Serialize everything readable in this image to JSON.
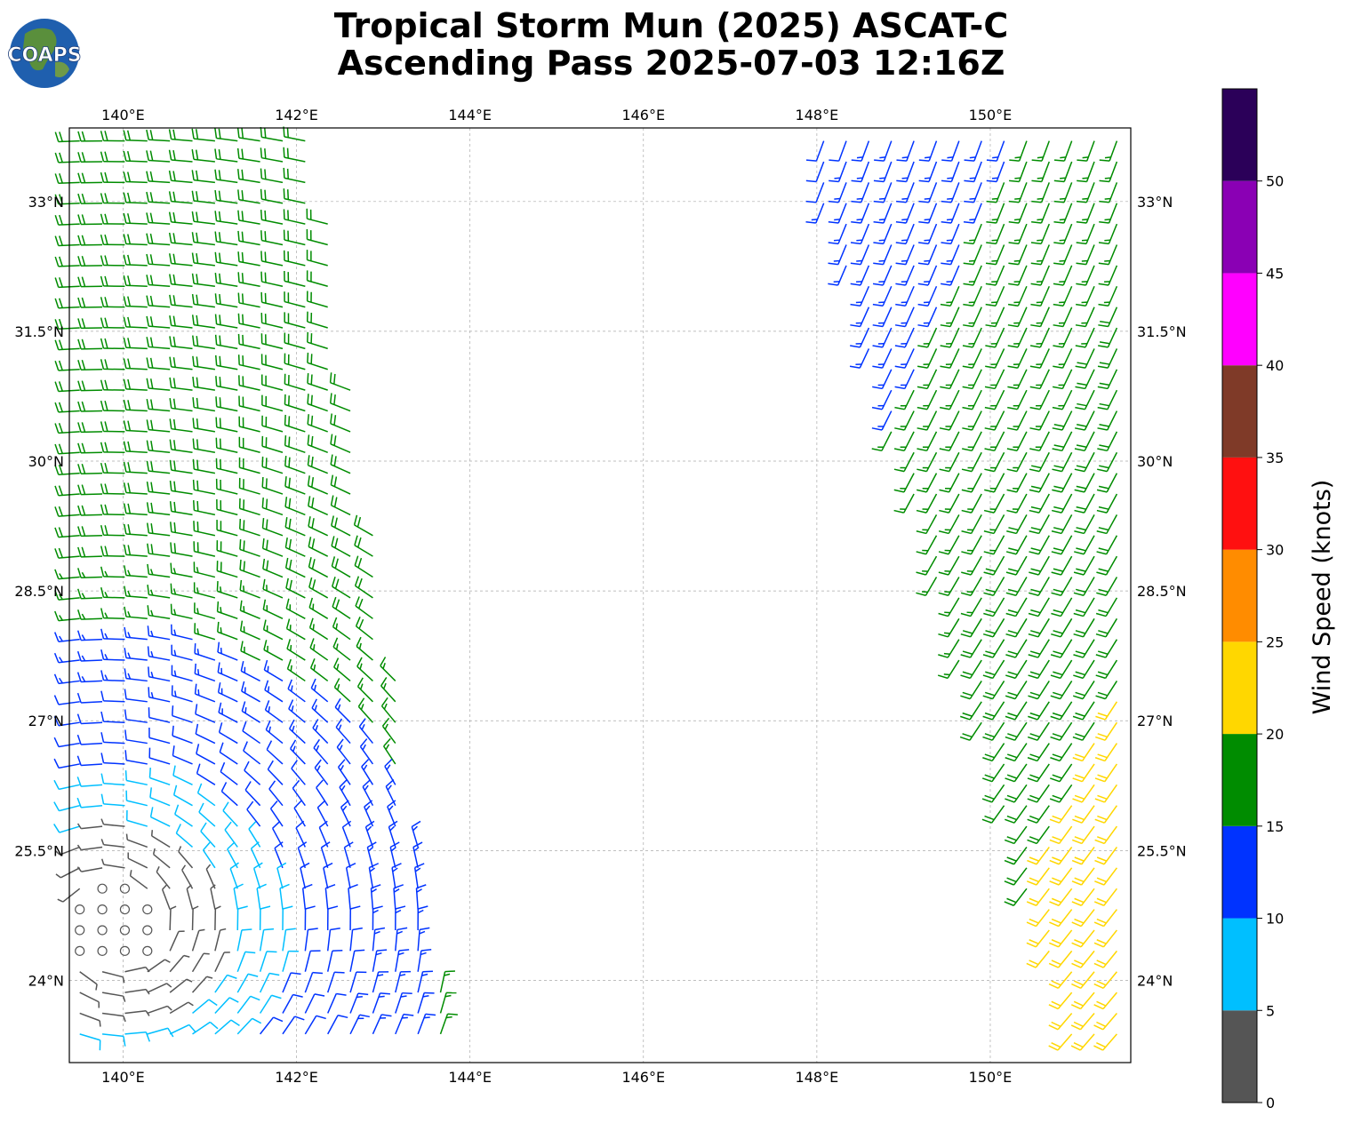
{
  "title_lines": [
    "Tropical Storm Mun (2025) ASCAT-C",
    "Ascending Pass 2025-07-03 12:16Z"
  ],
  "logo": {
    "text": "COAPS"
  },
  "chart_data": {
    "type": "wind_barb_map",
    "title": "Tropical Storm Mun (2025) ASCAT-C Ascending Pass 2025-07-03 12:16Z",
    "lon_range": [
      139.38,
      151.62
    ],
    "lat_range": [
      23.05,
      33.85
    ],
    "lon_ticks": [
      140,
      142,
      144,
      146,
      148,
      150
    ],
    "lon_tick_labels": [
      "140°E",
      "142°E",
      "144°E",
      "146°E",
      "148°E",
      "150°E"
    ],
    "lat_ticks": [
      24,
      25.5,
      27,
      28.5,
      30,
      31.5,
      33
    ],
    "lat_tick_labels": [
      "24°N",
      "25.5°N",
      "27°N",
      "28.5°N",
      "30°N",
      "31.5°N",
      "33°N"
    ],
    "grid": true,
    "swaths": [
      {
        "name": "west",
        "lon_span_top": [
          139.4,
          142.2
        ],
        "lon_span_bottom": [
          139.4,
          143.8
        ]
      },
      {
        "name": "east",
        "lon_span_top": [
          147.8,
          151.6
        ],
        "lon_span_bottom": [
          151.0,
          151.6
        ]
      }
    ],
    "colorbar": {
      "label": "Wind Speed (knots)",
      "bounds": [
        0,
        5,
        10,
        15,
        20,
        25,
        30,
        35,
        40,
        45,
        50,
        55
      ],
      "tick_values": [
        0,
        5,
        10,
        15,
        20,
        25,
        30,
        35,
        40,
        45,
        50
      ],
      "tick_labels": [
        "0",
        "5",
        "10",
        "15",
        "20",
        "25",
        "30",
        "35",
        "40",
        "45",
        "50"
      ],
      "colors": [
        "#555555",
        "#00bfff",
        "#0033ff",
        "#008c00",
        "#ffd700",
        "#ff8c00",
        "#ff1010",
        "#7f3a28",
        "#ff00ff",
        "#8a00b4",
        "#2b0059"
      ]
    }
  }
}
